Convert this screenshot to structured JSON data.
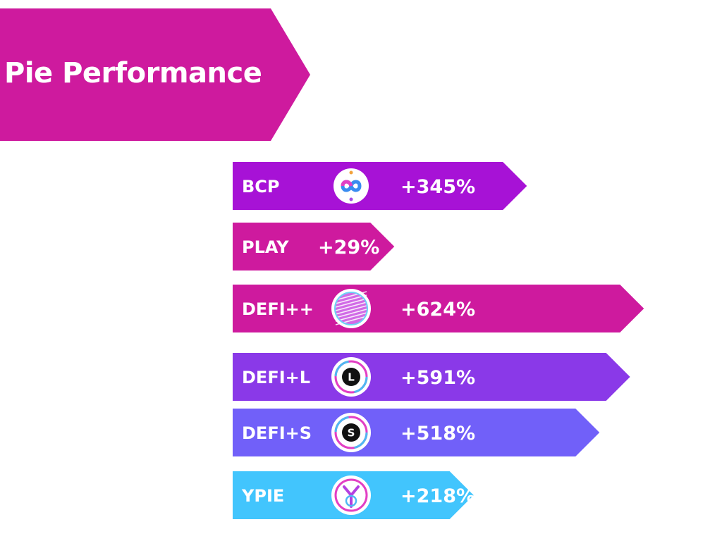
{
  "header": {
    "title": "Pie Performance"
  },
  "colors": {
    "banner": "#CE1A9E",
    "BCP": "#A712D6",
    "PLAY": "#CE1A9E",
    "DEFI++": "#CE1A9E",
    "DEFI+L": "#8A39E8",
    "DEFI+S": "#7160F9",
    "YPIE": "#42C5FD"
  },
  "chart_data": {
    "type": "bar",
    "orientation": "horizontal",
    "title": "Pie Performance",
    "categories": [
      "BCP",
      "PLAY",
      "DEFI++",
      "DEFI+L",
      "DEFI+S",
      "YPIE"
    ],
    "values": [
      345,
      29,
      624,
      591,
      518,
      218
    ],
    "value_labels": [
      "+345%",
      "+29%",
      "+624%",
      "+591%",
      "+518%",
      "+218%"
    ],
    "unit": "%",
    "grid": false,
    "legend": "none",
    "icons": [
      "bcp-logo-icon",
      "",
      "defi-plus-plus-logo-icon",
      "defi-l-logo-icon",
      "defi-s-logo-icon",
      "ypie-logo-icon"
    ]
  }
}
